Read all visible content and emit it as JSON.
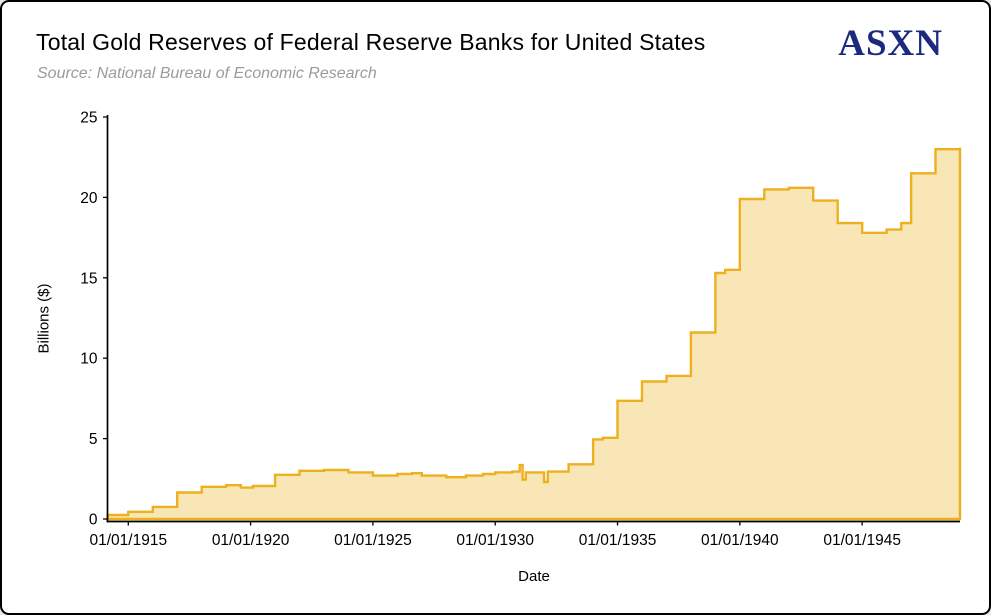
{
  "page": {
    "subtitle": "Source: National Bureau of Economic Research",
    "logo": "ASXN"
  },
  "chart_data": {
    "type": "area",
    "interpolation": "step-after",
    "title": "Total Gold Reserves of Federal Reserve Banks for United States",
    "subtitle": "Source: National Bureau of Economic Research",
    "xlabel": "Date",
    "ylabel": "Billions ($)",
    "xlim": [
      1914.15,
      1949
    ],
    "ylim": [
      0,
      25
    ],
    "grid": false,
    "legend": "none",
    "line_color": "#EDB120",
    "fill_color": "rgba(237, 177, 32, 0.32)",
    "axis_color": "#000000",
    "logo_color": "#1B2A7E",
    "x_ticks": [
      {
        "year": 1915,
        "label": "01/01/1915"
      },
      {
        "year": 1920,
        "label": "01/01/1920"
      },
      {
        "year": 1925,
        "label": "01/01/1925"
      },
      {
        "year": 1930,
        "label": "01/01/1930"
      },
      {
        "year": 1935,
        "label": "01/01/1935"
      },
      {
        "year": 1940,
        "label": "01/01/1940"
      },
      {
        "year": 1945,
        "label": "01/01/1945"
      }
    ],
    "y_ticks": [
      0,
      5,
      10,
      15,
      20,
      25
    ],
    "points": [
      [
        1914.15,
        0.25
      ],
      [
        1915.0,
        0.45
      ],
      [
        1916.0,
        0.75
      ],
      [
        1917.0,
        1.65
      ],
      [
        1918.0,
        2.0
      ],
      [
        1919.0,
        2.1
      ],
      [
        1919.6,
        1.95
      ],
      [
        1920.1,
        2.05
      ],
      [
        1921.0,
        2.75
      ],
      [
        1922.0,
        3.0
      ],
      [
        1923.0,
        3.05
      ],
      [
        1924.0,
        2.9
      ],
      [
        1925.0,
        2.7
      ],
      [
        1926.0,
        2.8
      ],
      [
        1926.6,
        2.85
      ],
      [
        1927.0,
        2.7
      ],
      [
        1928.0,
        2.6
      ],
      [
        1928.8,
        2.7
      ],
      [
        1929.5,
        2.8
      ],
      [
        1930.0,
        2.9
      ],
      [
        1930.7,
        2.95
      ],
      [
        1931.0,
        3.35
      ],
      [
        1931.12,
        2.45
      ],
      [
        1931.25,
        2.9
      ],
      [
        1932.0,
        2.3
      ],
      [
        1932.15,
        2.95
      ],
      [
        1933.0,
        3.4
      ],
      [
        1934.0,
        4.95
      ],
      [
        1934.4,
        5.05
      ],
      [
        1935.0,
        7.35
      ],
      [
        1936.0,
        8.55
      ],
      [
        1937.0,
        8.9
      ],
      [
        1938.0,
        11.6
      ],
      [
        1939.0,
        15.3
      ],
      [
        1939.4,
        15.5
      ],
      [
        1940.0,
        19.9
      ],
      [
        1941.0,
        20.5
      ],
      [
        1942.0,
        20.6
      ],
      [
        1943.0,
        19.8
      ],
      [
        1944.0,
        18.4
      ],
      [
        1945.0,
        17.8
      ],
      [
        1946.0,
        18.0
      ],
      [
        1946.6,
        18.4
      ],
      [
        1947.0,
        21.5
      ],
      [
        1948.0,
        23.0
      ],
      [
        1949.0,
        23.1
      ]
    ]
  }
}
